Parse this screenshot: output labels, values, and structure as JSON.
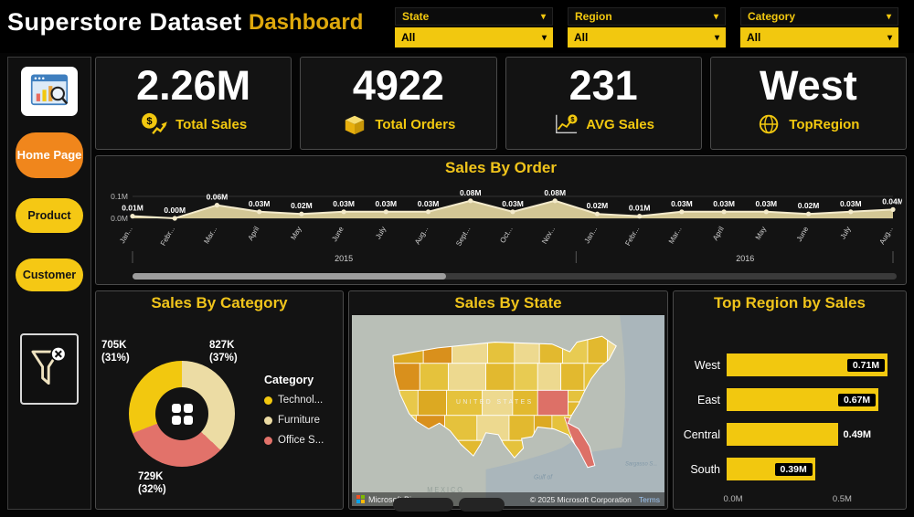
{
  "header": {
    "title": "Superstore Dataset",
    "subtitle": "Dashboard",
    "filters": [
      {
        "label": "State",
        "value": "All"
      },
      {
        "label": "Region",
        "value": "All"
      },
      {
        "label": "Category",
        "value": "All"
      }
    ]
  },
  "sidebar": {
    "nav": [
      {
        "label": "Home Page"
      },
      {
        "label": "Product"
      },
      {
        "label": "Customer"
      }
    ]
  },
  "kpis": [
    {
      "value": "2.26M",
      "label": "Total Sales"
    },
    {
      "value": "4922",
      "label": "Total Orders"
    },
    {
      "value": "231",
      "label": "AVG Sales"
    },
    {
      "value": "West",
      "label": "TopRegion"
    }
  ],
  "chart_data": [
    {
      "id": "sales-by-order",
      "type": "area",
      "title": "Sales By Order",
      "x": [
        "Jan...",
        "Febr...",
        "Mar...",
        "April",
        "May",
        "June",
        "July",
        "Aug...",
        "Sept...",
        "Oct...",
        "Nov...",
        "Jan...",
        "Febr...",
        "Mar...",
        "April",
        "May",
        "June",
        "July",
        "Aug..."
      ],
      "values": [
        0.01,
        0.0,
        0.06,
        0.03,
        0.02,
        0.03,
        0.03,
        0.03,
        0.08,
        0.03,
        0.08,
        0.02,
        0.01,
        0.03,
        0.03,
        0.03,
        0.02,
        0.03,
        0.04
      ],
      "point_labels": [
        "0.01M",
        "0.00M",
        "0.06M",
        "0.03M",
        "0.02M",
        "0.03M",
        "0.03M",
        "0.03M",
        "0.08M",
        "0.03M",
        "0.08M",
        "0.02M",
        "0.01M",
        "0.03M",
        "0.03M",
        "0.03M",
        "0.02M",
        "0.03M",
        "0.04M"
      ],
      "year_groups": [
        {
          "label": "2015",
          "count": 11
        },
        {
          "label": "2016",
          "count": 8
        }
      ],
      "ylim": [
        0,
        0.1
      ],
      "ytick_labels": [
        "0.1M",
        "0.0M"
      ],
      "series_color": "#E9DCA4"
    },
    {
      "id": "sales-by-category",
      "type": "donut",
      "title": "Sales By Category",
      "legend_title": "Category",
      "slices": [
        {
          "name": "Technol...",
          "value": 705,
          "pct": 31,
          "callout_value": "705K",
          "callout_pct": "(31%)",
          "color": "#F2C80F"
        },
        {
          "name": "Furniture",
          "value": 827,
          "pct": 37,
          "callout_value": "827K",
          "callout_pct": "(37%)",
          "color": "#ECDCA4"
        },
        {
          "name": "Office S...",
          "value": 729,
          "pct": 32,
          "callout_value": "729K",
          "callout_pct": "(32%)",
          "color": "#E2726A"
        }
      ]
    },
    {
      "id": "sales-by-state",
      "type": "map",
      "title": "Sales By State",
      "labels": {
        "country": "UNITED STATES",
        "mexico": "MEXICO",
        "gulf": "Gulf of",
        "sargasso": "Sargasso S...",
        "brand": "Microsoft Bing",
        "copyright": "© 2025 Microsoft Corporation",
        "terms": "Terms"
      }
    },
    {
      "id": "top-region-by-sales",
      "type": "bar",
      "title": "Top Region by Sales",
      "categories": [
        "West",
        "East",
        "Central",
        "South"
      ],
      "values": [
        0.71,
        0.67,
        0.49,
        0.39
      ],
      "bar_labels": [
        "0.71M",
        "0.67M",
        "0.49M",
        "0.39M"
      ],
      "label_inside": [
        true,
        true,
        false,
        true
      ],
      "xlim": [
        0,
        0.75
      ],
      "xtick_labels": [
        "0.0M",
        "0.5M"
      ],
      "xtick_positions": [
        0,
        0.667
      ],
      "bar_color": "#F2C80F"
    }
  ]
}
